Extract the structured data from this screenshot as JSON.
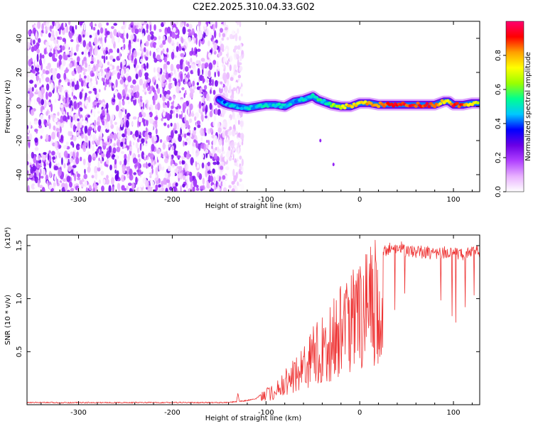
{
  "title": "C2E2.2025.310.04.33.G02",
  "chart_data": [
    {
      "type": "heatmap",
      "xlabel": "Height of straight line (km)",
      "ylabel": "Frequency (Hz)",
      "xlim": [
        -355,
        128
      ],
      "ylim": [
        -50,
        50
      ],
      "x_ticks": [
        -300,
        -200,
        -100,
        0,
        100
      ],
      "x_tick_labels": [
        "-300",
        "-200",
        "-100",
        "0",
        "100"
      ],
      "y_ticks": [
        -40,
        -20,
        0,
        20,
        40
      ],
      "y_tick_labels": [
        "-40",
        "-20",
        "0",
        "20",
        "40"
      ],
      "colorbar": {
        "label": "Normalized spectral amplitude",
        "range": [
          0,
          1
        ],
        "ticks": [
          0.0,
          0.2,
          0.4,
          0.6,
          0.8
        ],
        "tick_labels": [
          "0.0",
          "0.2",
          "0.4",
          "0.6",
          "0.8"
        ],
        "colors": [
          "#ffffff",
          "#e8b0ff",
          "#b040ff",
          "#6a00e6",
          "#0000ff",
          "#00c8ff",
          "#00ff90",
          "#9aff00",
          "#ffff00",
          "#ffa000",
          "#ff0000",
          "#ff0070"
        ]
      },
      "noise_region": {
        "x_start": -355,
        "x_end": -125,
        "amplitude_range": [
          0.0,
          0.12
        ]
      },
      "signal_ridge": {
        "x": [
          -150,
          -145,
          -140,
          -130,
          -120,
          -110,
          -100,
          -90,
          -80,
          -70,
          -60,
          -55,
          -50,
          -45,
          -40,
          -30,
          -20,
          -10,
          0,
          10,
          20,
          40,
          60,
          80,
          90,
          95,
          100,
          110,
          120,
          128
        ],
        "frequency": [
          4,
          2,
          1,
          0,
          -1,
          0,
          1,
          1,
          0,
          3,
          4,
          5,
          6,
          4,
          3,
          1,
          0,
          0,
          2,
          2,
          1,
          1,
          1,
          1,
          3,
          3,
          1,
          1,
          2,
          2
        ],
        "amplitude": [
          0.35,
          0.4,
          0.45,
          0.45,
          0.5,
          0.45,
          0.5,
          0.48,
          0.5,
          0.45,
          0.5,
          0.5,
          0.55,
          0.55,
          0.5,
          0.6,
          0.7,
          0.8,
          0.7,
          0.8,
          0.85,
          0.9,
          0.9,
          0.9,
          0.7,
          0.7,
          0.9,
          0.9,
          0.7,
          0.7
        ]
      }
    },
    {
      "type": "line",
      "xlabel": "Height of straight line (km)",
      "ylabel": "SNR (10 * v/v)",
      "y_scale_note": "(x10⁴)",
      "xlim": [
        -355,
        128
      ],
      "ylim": [
        0,
        1.6
      ],
      "x_ticks": [
        -300,
        -200,
        -100,
        0,
        100
      ],
      "x_tick_labels": [
        "-300",
        "-200",
        "-100",
        "0",
        "100"
      ],
      "y_ticks": [
        0.5,
        1.0,
        1.5
      ],
      "y_tick_labels": [
        "0.5",
        "1.0",
        "1.5"
      ],
      "series_color": "#ee3333",
      "series": [
        {
          "x": [
            -355,
            -300,
            -200,
            -150,
            -140,
            -130,
            -120,
            -110,
            -105,
            -100,
            -95,
            -90,
            -85,
            -80,
            -75,
            -70,
            -65,
            -60,
            -55,
            -50,
            -45,
            -40,
            -35,
            -30,
            -25,
            -20,
            -15,
            -10,
            -5,
            0,
            5,
            10,
            15,
            20,
            25,
            30,
            35,
            40,
            45,
            50,
            60,
            70,
            80,
            90,
            95,
            100,
            110,
            120,
            128
          ],
          "y": [
            0.02,
            0.02,
            0.02,
            0.02,
            0.02,
            0.03,
            0.04,
            0.06,
            0.1,
            0.15,
            0.15,
            0.2,
            0.25,
            0.3,
            0.35,
            0.4,
            0.5,
            0.55,
            0.6,
            0.7,
            0.75,
            0.8,
            0.85,
            0.9,
            0.95,
            1.05,
            1.1,
            1.1,
            1.2,
            1.2,
            1.3,
            1.35,
            1.4,
            1.45,
            1.5,
            1.52,
            1.55,
            1.55,
            1.55,
            1.5,
            1.5,
            1.5,
            1.48,
            1.5,
            1.48,
            1.5,
            1.48,
            1.5,
            1.5
          ]
        }
      ]
    }
  ]
}
